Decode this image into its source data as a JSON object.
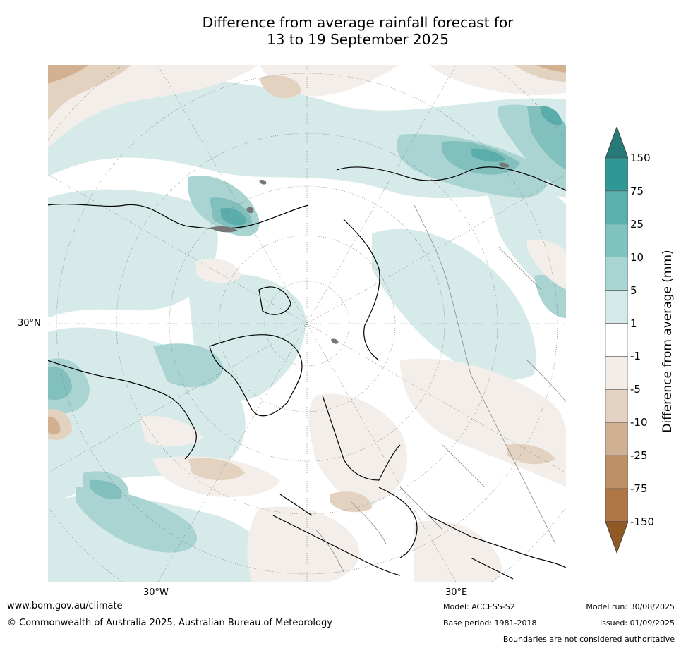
{
  "title": {
    "line1": "Difference from average rainfall forecast for",
    "line2": "13 to 19 September 2025"
  },
  "map": {
    "projection": "north-polar-stereographic",
    "lat_label": "30°N",
    "lon_labels": [
      "30°W",
      "30°E"
    ],
    "legend_colors": {
      "150+": "#2a7a78",
      "75-150": "#379b98",
      "25-75": "#5aadaa",
      "10-25": "#82c0bd",
      "5-10": "#aad4d2",
      "1-5": "#d6eae9",
      "-1-1": "#ffffff",
      "-5--1": "#f3eee9",
      "-10--5": "#e3d2c0",
      "-25--10": "#d2b193",
      "-75--25": "#bb8e62",
      "-150--75": "#a77038",
      "-150-": "#8e5b25"
    }
  },
  "colorbar": {
    "title": "Difference from average (mm)",
    "ticks": [
      "150",
      "75",
      "25",
      "10",
      "5",
      "1",
      "-1",
      "-5",
      "-10",
      "-25",
      "-75",
      "-150"
    ],
    "colors": [
      "#2f9895",
      "#5ab0ad",
      "#80c2bf",
      "#a8d4d2",
      "#d4eae9",
      "#ffffff",
      "#f2ede8",
      "#e3d2c1",
      "#d0b092",
      "#bd9066",
      "#ad7644"
    ],
    "top_arrow_color": "#267a78",
    "bottom_arrow_color": "#8f5a26"
  },
  "footer": {
    "website": "www.bom.gov.au/climate",
    "copyright": "© Commonwealth of Australia 2025, Australian Bureau of Meteorology",
    "model": "Model: ACCESS-S2",
    "base_period": "Base period: 1981-2018",
    "model_run": "Model run: 30/08/2025",
    "issued": "Issued: 01/09/2025",
    "disclaimer": "Boundaries are not considered authoritative"
  }
}
